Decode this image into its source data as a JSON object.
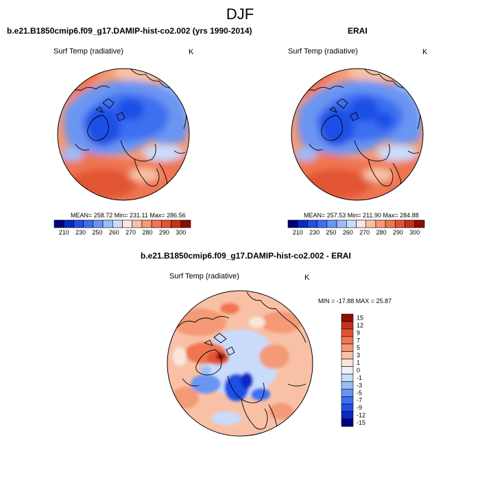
{
  "season": "DJF",
  "panels": [
    {
      "title": "b.e21.B1850cmip6.f09_g17.DAMIP-hist-co2.002 (yrs 1990-2014)",
      "variable": "Surf Temp (radiative)",
      "units": "K",
      "stats": "MEAN= 258.72  Min= 231.11  Max= 286.56",
      "colorbar_ticks": [
        "210",
        "230",
        "250",
        "260",
        "270",
        "280",
        "290",
        "300"
      ]
    },
    {
      "title": "ERAI",
      "variable": "Surf Temp (radiative)",
      "units": "K",
      "stats": "MEAN= 257.53  Min= 211.90  Max= 284.88",
      "colorbar_ticks": [
        "210",
        "230",
        "250",
        "260",
        "270",
        "280",
        "290",
        "300"
      ]
    },
    {
      "title": "b.e21.B1850cmip6.f09_g17.DAMIP-hist-co2.002 - ERAI",
      "variable": "Surf Temp (radiative)",
      "units": "K",
      "stats": "MIN = -17.88 MAX =  25.87",
      "colorbar_ticks": [
        "15",
        "12",
        "9",
        "7",
        "5",
        "3",
        "1",
        "0",
        "-1",
        "-3",
        "-5",
        "-7",
        "-9",
        "-12",
        "-15"
      ]
    }
  ],
  "colors": {
    "abs_scale": [
      "#00007f",
      "#0b27c4",
      "#1f4fe6",
      "#3d6ff0",
      "#6a95f2",
      "#9bbcf7",
      "#c9dcfb",
      "#f9e6dc",
      "#f8c1a6",
      "#f49a76",
      "#ef7651",
      "#e25431",
      "#c43319",
      "#8d0e00"
    ],
    "diff_scale": [
      "#00007f",
      "#0b27c4",
      "#1f4fe6",
      "#3d6ff0",
      "#6a95f2",
      "#9bbcf7",
      "#c9dcfb",
      "#eef2f8",
      "#f9e6dc",
      "#f8c1a6",
      "#f49a76",
      "#ef7651",
      "#e25431",
      "#c43319",
      "#8d0e00"
    ]
  }
}
